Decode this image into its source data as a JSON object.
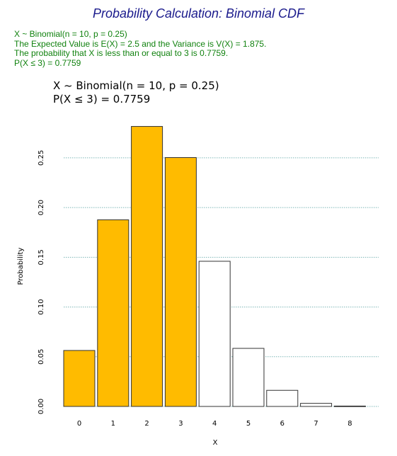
{
  "header": {
    "title": "Probability Calculation: Binomial CDF"
  },
  "summary": {
    "lines": [
      "X ~ Binomial(n = 10, p = 0.25)",
      "The Expected Value is E(X) = 2.5 and the Variance is V(X) = 1.875.",
      "The probability that X is less than or equal to 3 is 0.7759.",
      "P(X ≤ 3) = 0.7759"
    ]
  },
  "colors": {
    "highlight_fill": "#FFBB00",
    "normal_fill": "#FFFFFF",
    "bar_stroke": "#333333",
    "grid": "#7fb8b8",
    "title_color": "#1a1a8c",
    "summary_color": "#11820f"
  },
  "chart_data": {
    "type": "bar",
    "title_lines": [
      "X ~ Binomial(n = 10, p = 0.25)",
      "P(X ≤ 3) = 0.7759"
    ],
    "categories": [
      "0",
      "1",
      "2",
      "3",
      "4",
      "5",
      "6",
      "7",
      "8"
    ],
    "values": [
      0.0563,
      0.1877,
      0.2816,
      0.2503,
      0.146,
      0.0584,
      0.0162,
      0.0031,
      0.0004
    ],
    "highlighted": [
      true,
      true,
      true,
      true,
      false,
      false,
      false,
      false,
      false
    ],
    "xlabel": "X",
    "ylabel": "Probability",
    "ylim": [
      0,
      0.282
    ],
    "yticks": [
      "0.00",
      "0.05",
      "0.10",
      "0.15",
      "0.20",
      "0.25"
    ],
    "ytick_values": [
      0,
      0.05,
      0.1,
      0.15,
      0.2,
      0.25
    ],
    "grid": true,
    "legend": false
  }
}
